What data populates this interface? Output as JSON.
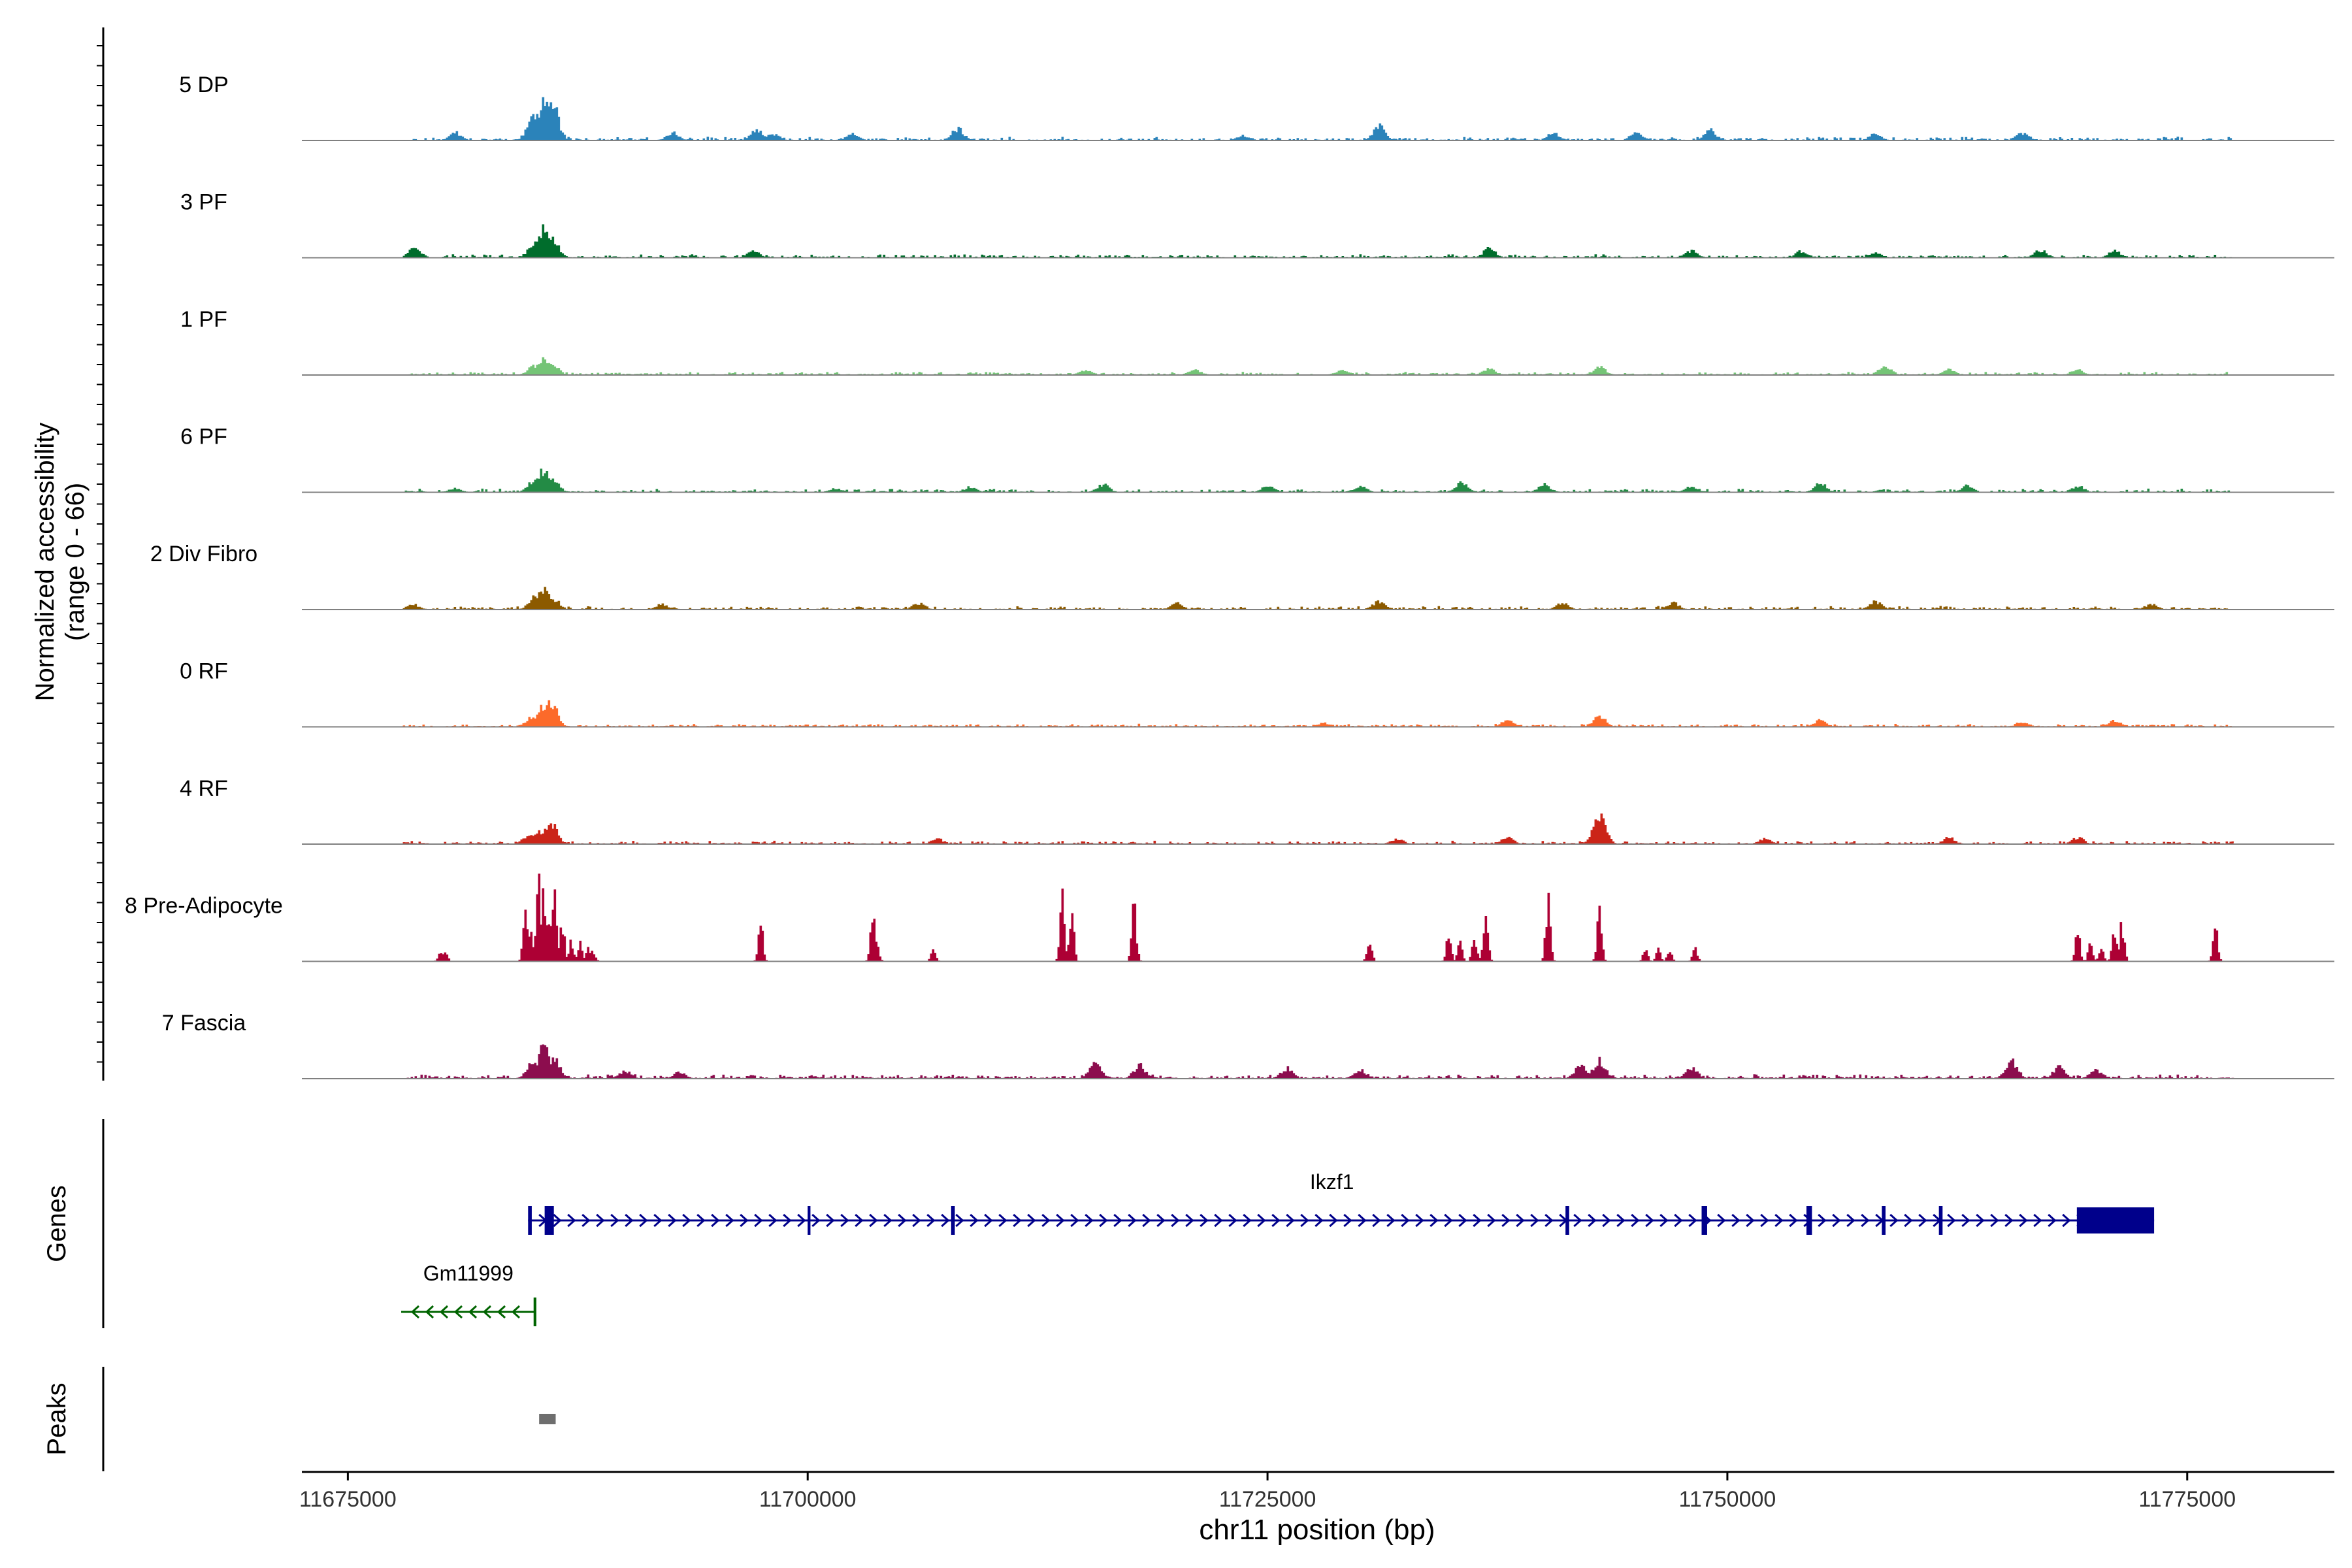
{
  "chart_data": {
    "type": "area",
    "chromosome": "chr11",
    "xlabel": "chr11 position (bp)",
    "xlim": [
      11672500,
      11783000
    ],
    "x_ticks": [
      11675000,
      11700000,
      11725000,
      11750000,
      11775000
    ],
    "x_tick_labels": [
      "11675000",
      "11700000",
      "11725000",
      "11750000",
      "11775000"
    ],
    "ylabel_line1": "Normalized accessibility",
    "ylabel_line2": "(range 0 - 66)",
    "ylim": [
      0,
      66
    ],
    "track_range": [
      11678000,
      11777500
    ],
    "series": [
      {
        "name": "5 DP",
        "color": "#2b83ba",
        "seed": 11,
        "noise": 0.1,
        "gaps": 0.18,
        "peaks": [
          [
            11685600,
            32
          ],
          [
            11685000,
            18
          ],
          [
            11686100,
            26
          ],
          [
            11680800,
            6
          ],
          [
            11692600,
            6
          ],
          [
            11697200,
            8
          ],
          [
            11698100,
            5
          ],
          [
            11702400,
            5
          ],
          [
            11708100,
            9
          ],
          [
            11723600,
            4
          ],
          [
            11731000,
            11
          ],
          [
            11740500,
            6
          ],
          [
            11745000,
            6
          ],
          [
            11749000,
            8
          ],
          [
            11758000,
            5
          ],
          [
            11766000,
            6
          ]
        ]
      },
      {
        "name": "3 PF",
        "color": "#006d2c",
        "seed": 23,
        "noise": 0.1,
        "gaps": 0.1,
        "peaks": [
          [
            11685600,
            22
          ],
          [
            11685100,
            12
          ],
          [
            11686100,
            14
          ],
          [
            11678600,
            8
          ],
          [
            11697000,
            5
          ],
          [
            11737000,
            7
          ],
          [
            11748000,
            5
          ],
          [
            11754000,
            5
          ],
          [
            11758000,
            4
          ],
          [
            11767000,
            6
          ],
          [
            11771000,
            5
          ]
        ]
      },
      {
        "name": "1 PF",
        "color": "#74c476",
        "seed": 37,
        "noise": 0.09,
        "gaps": 0.05,
        "peaks": [
          [
            11685600,
            12
          ],
          [
            11685100,
            8
          ],
          [
            11686100,
            8
          ],
          [
            11715000,
            4
          ],
          [
            11721000,
            4
          ],
          [
            11729000,
            4
          ],
          [
            11737000,
            5
          ],
          [
            11743000,
            6
          ],
          [
            11758500,
            7
          ],
          [
            11762000,
            4
          ],
          [
            11769000,
            4
          ]
        ]
      },
      {
        "name": "6 PF",
        "color": "#238b45",
        "seed": 51,
        "noise": 0.1,
        "gaps": 0.28,
        "peaks": [
          [
            11685600,
            18
          ],
          [
            11685100,
            10
          ],
          [
            11686100,
            10
          ],
          [
            11680800,
            3
          ],
          [
            11701500,
            3
          ],
          [
            11708800,
            4
          ],
          [
            11716000,
            6
          ],
          [
            11725000,
            5
          ],
          [
            11730000,
            5
          ],
          [
            11735500,
            8
          ],
          [
            11740000,
            6
          ],
          [
            11748000,
            5
          ],
          [
            11755000,
            7
          ],
          [
            11763000,
            5
          ],
          [
            11769000,
            5
          ]
        ]
      },
      {
        "name": "2 Div Fibro",
        "color": "#8c5a00",
        "seed": 67,
        "noise": 0.1,
        "gaps": 0.15,
        "peaks": [
          [
            11685600,
            16
          ],
          [
            11685100,
            10
          ],
          [
            11686100,
            9
          ],
          [
            11678500,
            4
          ],
          [
            11692000,
            4
          ],
          [
            11706000,
            5
          ],
          [
            11720000,
            5
          ],
          [
            11731000,
            6
          ],
          [
            11741000,
            5
          ],
          [
            11747000,
            5
          ],
          [
            11758000,
            6
          ],
          [
            11773000,
            4
          ]
        ]
      },
      {
        "name": "0 RF",
        "color": "#fc6a2a",
        "seed": 79,
        "noise": 0.08,
        "gaps": 0.05,
        "peaks": [
          [
            11686000,
            20
          ],
          [
            11685500,
            14
          ],
          [
            11685000,
            9
          ],
          [
            11743000,
            9
          ],
          [
            11738000,
            5
          ],
          [
            11755000,
            5
          ],
          [
            11766000,
            4
          ],
          [
            11771000,
            5
          ],
          [
            11728000,
            3
          ]
        ]
      },
      {
        "name": "4 RF",
        "color": "#cb2418",
        "seed": 83,
        "noise": 0.09,
        "gaps": 0.1,
        "peaks": [
          [
            11686000,
            18
          ],
          [
            11685300,
            10
          ],
          [
            11684800,
            7
          ],
          [
            11743000,
            24
          ],
          [
            11738000,
            5
          ],
          [
            11732000,
            4
          ],
          [
            11752000,
            4
          ],
          [
            11762000,
            5
          ],
          [
            11769000,
            5
          ],
          [
            11707000,
            4
          ]
        ]
      },
      {
        "name": "8 Pre-Adipocyte",
        "color": "#ad0034",
        "seed": 97,
        "noise": 0.0,
        "gaps": 1.0,
        "sparse": true,
        "peaks": [
          [
            11680000,
            9
          ],
          [
            11680250,
            9
          ],
          [
            11684600,
            36
          ],
          [
            11684900,
            26
          ],
          [
            11685300,
            66
          ],
          [
            11685600,
            50
          ],
          [
            11685900,
            40
          ],
          [
            11686200,
            50
          ],
          [
            11686600,
            30
          ],
          [
            11687100,
            16
          ],
          [
            11687600,
            14
          ],
          [
            11688000,
            10
          ],
          [
            11688300,
            8
          ],
          [
            11697400,
            28
          ],
          [
            11703500,
            34
          ],
          [
            11703700,
            14
          ],
          [
            11706800,
            10
          ],
          [
            11713800,
            48
          ],
          [
            11714300,
            36
          ],
          [
            11717700,
            42
          ],
          [
            11730500,
            18
          ],
          [
            11734800,
            22
          ],
          [
            11735400,
            14
          ],
          [
            11736200,
            18
          ],
          [
            11736800,
            40
          ],
          [
            11740200,
            46
          ],
          [
            11743000,
            38
          ],
          [
            11745500,
            9
          ],
          [
            11746200,
            9
          ],
          [
            11746800,
            9
          ],
          [
            11748200,
            9
          ],
          [
            11769000,
            22
          ],
          [
            11769700,
            14
          ],
          [
            11770300,
            10
          ],
          [
            11771000,
            22
          ],
          [
            11771400,
            28
          ],
          [
            11776500,
            26
          ]
        ]
      },
      {
        "name": "7 Fascia",
        "color": "#8c0d4e",
        "seed": 113,
        "noise": 0.12,
        "gaps": 0.03,
        "peaks": [
          [
            11685600,
            24
          ],
          [
            11685000,
            12
          ],
          [
            11686200,
            14
          ],
          [
            11690000,
            6
          ],
          [
            11693000,
            5
          ],
          [
            11715600,
            12
          ],
          [
            11718000,
            10
          ],
          [
            11726000,
            8
          ],
          [
            11730000,
            7
          ],
          [
            11743000,
            14
          ],
          [
            11742000,
            10
          ],
          [
            11748000,
            8
          ],
          [
            11765400,
            14
          ],
          [
            11768000,
            9
          ],
          [
            11770000,
            7
          ]
        ]
      }
    ],
    "genes": [
      {
        "name": "Ikzf1",
        "strand": "+",
        "color": "#00008b",
        "start": 11684800,
        "end": 11773200,
        "exons": [
          [
            11684800,
            11685000
          ],
          [
            11685700,
            11686200
          ],
          [
            11700000,
            11700150
          ],
          [
            11707800,
            11708000
          ],
          [
            11741200,
            11741400
          ],
          [
            11748600,
            11748900
          ],
          [
            11754300,
            11754600
          ],
          [
            11758400,
            11758600
          ],
          [
            11761500,
            11761700
          ],
          [
            11769000,
            11773200
          ]
        ]
      },
      {
        "name": "Gm11999",
        "strand": "-",
        "color": "#006400",
        "start": 11677900,
        "end": 11685200,
        "exons": [
          [
            11685100,
            11685250
          ]
        ]
      }
    ],
    "peaks_track": [
      [
        11685400,
        11686300
      ]
    ],
    "panel_labels": {
      "genes": "Genes",
      "peaks": "Peaks"
    }
  }
}
